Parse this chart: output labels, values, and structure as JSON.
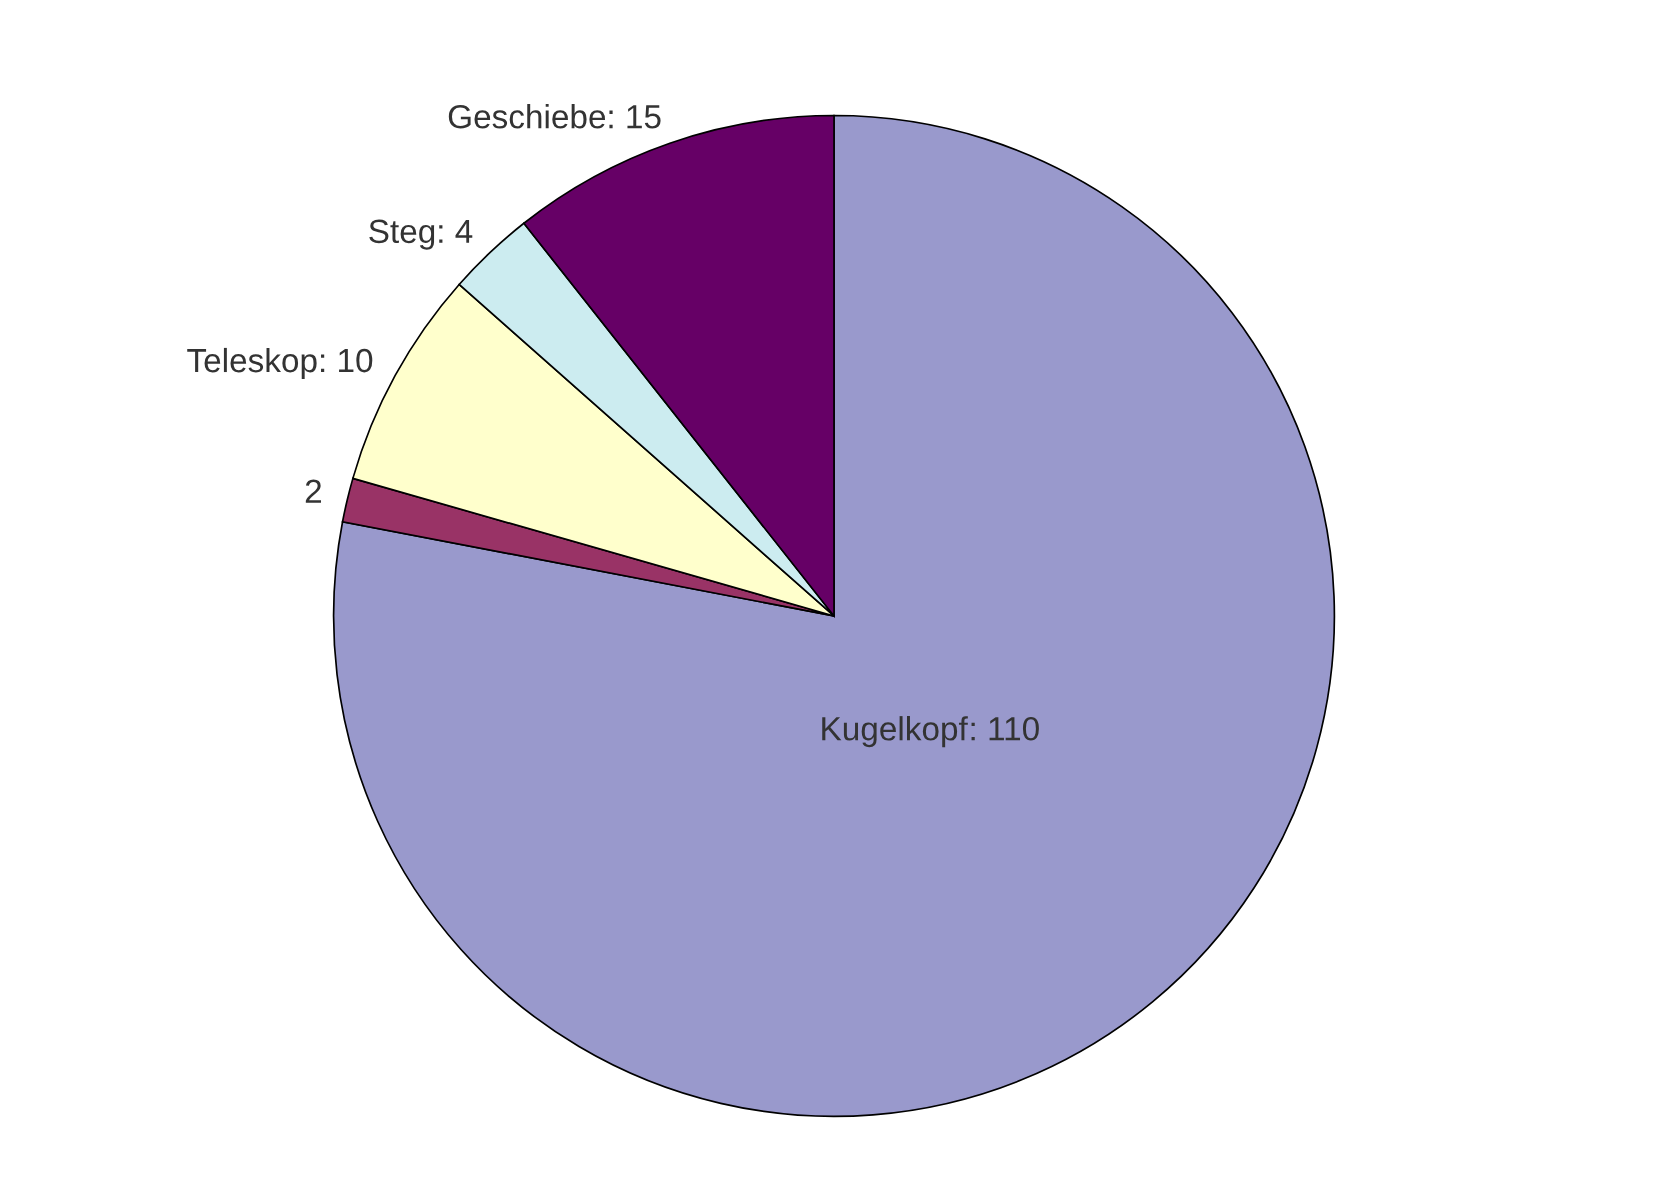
{
  "chart_data": {
    "type": "pie",
    "categories": [
      "Kugelkopf",
      null,
      "Teleskop",
      "Steg",
      "Geschiebe"
    ],
    "values": [
      110,
      2,
      10,
      4,
      15
    ],
    "value_labels": [
      ": 110",
      "2",
      ": 10",
      ": 4",
      ": 15"
    ],
    "colors": [
      "#9999cc",
      "#993366",
      "#ffffcc",
      "#ccecf0",
      "#660066"
    ]
  }
}
